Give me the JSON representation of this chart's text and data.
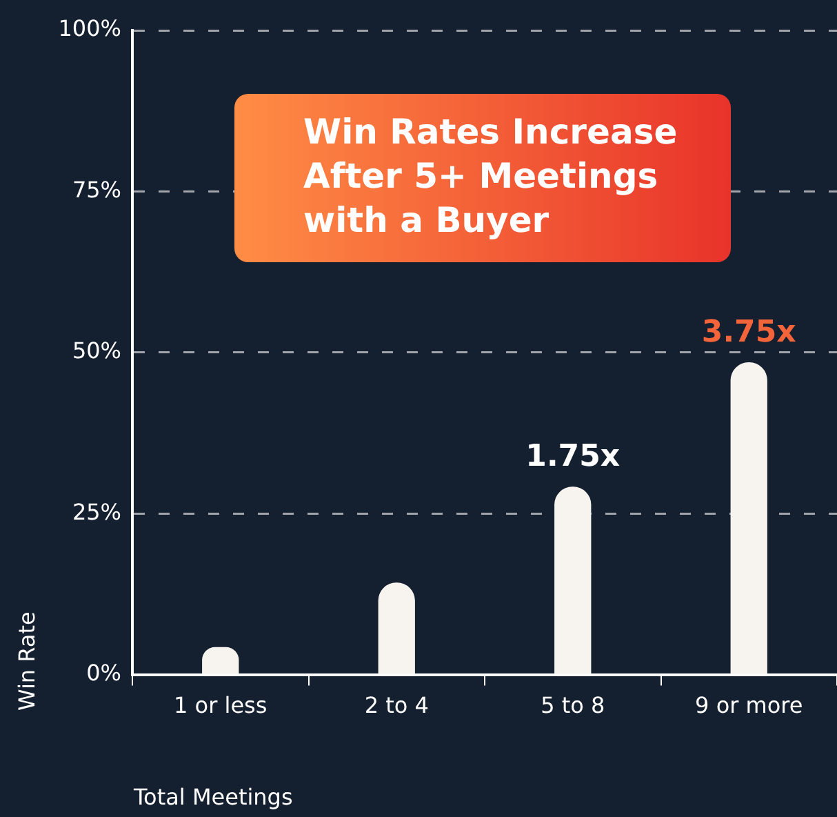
{
  "chart_data": {
    "type": "bar",
    "title": "Win Rates Increase After 5+ Meetings with a Buyer",
    "xlabel": "Total Meetings",
    "ylabel": "Win Rate",
    "categories": [
      "1 or less",
      "2 to 4",
      "5 to 8",
      "9 or more"
    ],
    "values": [
      4.2,
      14.2,
      29.1,
      48.4
    ],
    "color": "#f7f3ef",
    "ylim": [
      0,
      100
    ],
    "yticks": [
      {
        "value": 0,
        "label": "0%"
      },
      {
        "value": 25,
        "label": "25%"
      },
      {
        "value": 50,
        "label": "50%"
      },
      {
        "value": 75,
        "label": "75%"
      },
      {
        "value": 100,
        "label": "100%"
      }
    ],
    "grid": "y",
    "legend": false,
    "annotations": [
      {
        "text": "1.75x",
        "x": "5 to 8",
        "y": 29.1
      },
      {
        "text": "3.75x",
        "x": "9 or more",
        "y": 48.4
      }
    ]
  }
}
